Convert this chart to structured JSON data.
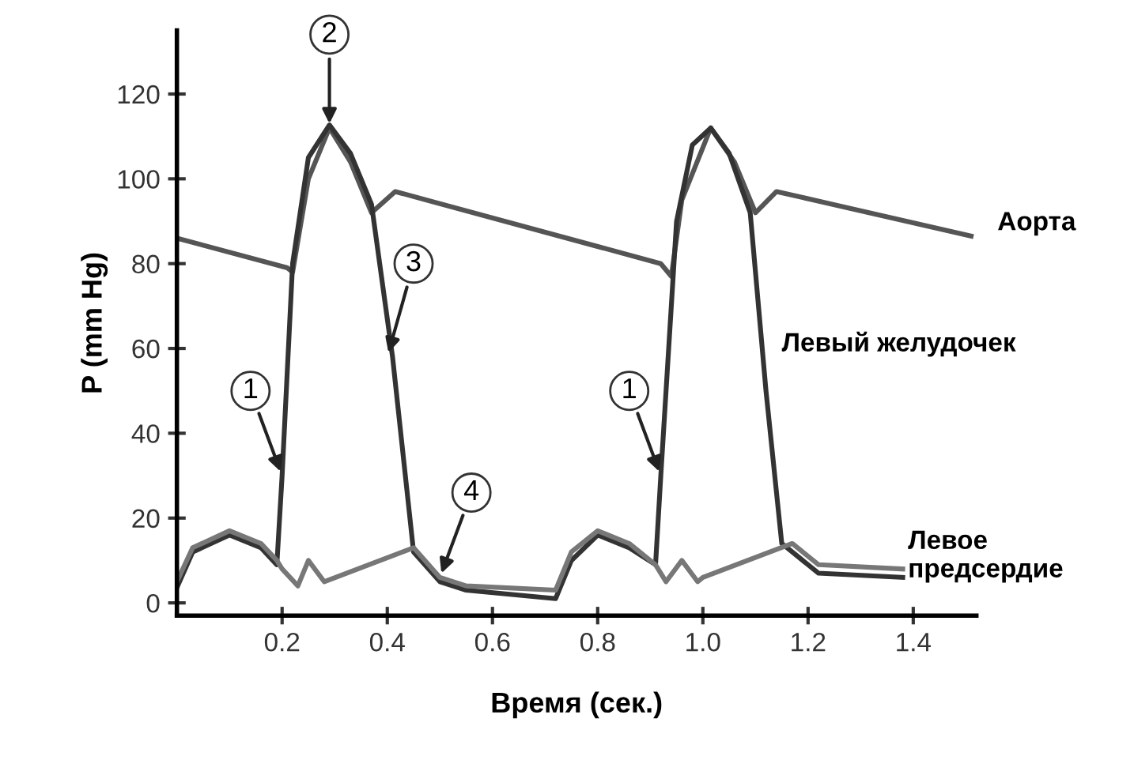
{
  "chart_data": {
    "type": "line",
    "xlabel": "Время (сек.)",
    "ylabel": "P (mm Hg)",
    "xlim": [
      0,
      1.52
    ],
    "ylim": [
      -3,
      135
    ],
    "xticks": [
      0.2,
      0.4,
      0.6,
      0.8,
      {
        "value": 1.0,
        "label": "1.0"
      },
      1.2,
      1.4
    ],
    "yticks": [
      0,
      20,
      40,
      60,
      80,
      100,
      120
    ],
    "grid": false,
    "legend": false,
    "marker": "none",
    "line_style": "solid",
    "series": [
      {
        "name": "Аорта",
        "color": "#555555",
        "x": [
          0,
          0.21,
          0.22,
          0.25,
          0.29,
          0.33,
          0.37,
          0.415,
          0.92,
          0.94,
          0.96,
          1.015,
          1.06,
          1.1,
          1.14,
          1.51
        ],
        "values": [
          86,
          79,
          78,
          100,
          112,
          104,
          92,
          97,
          80,
          77,
          95,
          112,
          104,
          92,
          97,
          86.5
        ]
      },
      {
        "name": "Левый желудочек",
        "color": "#333333",
        "x": [
          0,
          0.03,
          0.1,
          0.16,
          0.19,
          0.2,
          0.22,
          0.25,
          0.29,
          0.33,
          0.37,
          0.41,
          0.45,
          0.5,
          0.55,
          0.72,
          0.75,
          0.8,
          0.86,
          0.91,
          0.92,
          0.95,
          0.98,
          1.015,
          1.05,
          1.09,
          1.12,
          1.15,
          1.22,
          1.38
        ],
        "values": [
          3.6,
          12,
          16,
          13,
          9,
          30,
          80,
          105,
          112.7,
          106,
          94,
          58,
          12,
          5,
          3,
          1,
          10,
          16,
          13,
          9,
          30,
          90,
          108,
          112,
          106,
          92,
          50,
          14,
          7,
          6
        ]
      },
      {
        "name": "Левое предсердие",
        "color": "#777777",
        "x": [
          0,
          0.03,
          0.1,
          0.16,
          0.19,
          0.2,
          0.23,
          0.25,
          0.28,
          0.45,
          0.5,
          0.55,
          0.72,
          0.75,
          0.8,
          0.86,
          0.91,
          0.93,
          0.96,
          0.99,
          1.0,
          1.17,
          1.22,
          1.38
        ],
        "values": [
          5,
          13,
          17,
          14,
          10,
          8,
          4,
          10,
          5,
          13,
          6,
          4,
          3,
          12,
          17,
          14,
          9,
          5,
          10,
          5,
          6,
          14,
          9,
          8
        ]
      }
    ],
    "annotations": [
      {
        "text": "1",
        "x": 0.2,
        "y": 30
      },
      {
        "text": "2",
        "x": 0.29,
        "y": 112
      },
      {
        "text": "3",
        "x": 0.4,
        "y": 58
      },
      {
        "text": "4",
        "x": 0.5,
        "y": 6
      },
      {
        "text": "1",
        "x": 0.92,
        "y": 30
      }
    ]
  }
}
